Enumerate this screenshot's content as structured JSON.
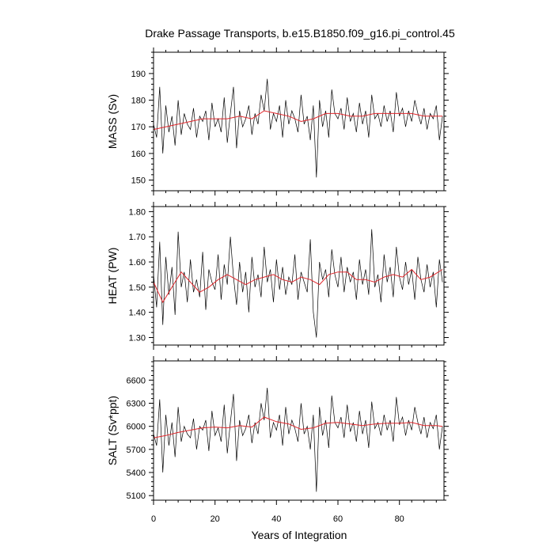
{
  "chart_data": {
    "type": "line",
    "title": "Drake Passage Transports, b.e15.B1850.f09_g16.pi_control.45",
    "xlabel": "Years of Integration",
    "xlim": [
      0,
      94.5
    ],
    "xticks": [
      0,
      20,
      40,
      60,
      80
    ],
    "xtick_labels": [
      "0",
      "20",
      "40",
      "60",
      "80"
    ],
    "colors": {
      "raw": "#000000",
      "smooth": "#e0262b"
    },
    "panels": [
      {
        "ylabel": "MASS (Sv)",
        "ylim": [
          146,
          198
        ],
        "yticks": [
          150,
          160,
          170,
          180,
          190
        ],
        "ytick_labels": [
          "150",
          "160",
          "170",
          "180",
          "190"
        ],
        "series": [
          {
            "style": "raw",
            "x": [
              0,
              1,
              2,
              3,
              4,
              5,
              6,
              7,
              8,
              9,
              10,
              11,
              12,
              13,
              14,
              15,
              16,
              17,
              18,
              19,
              20,
              21,
              22,
              23,
              24,
              25,
              26,
              27,
              28,
              29,
              30,
              31,
              32,
              33,
              34,
              35,
              36,
              37,
              38,
              39,
              40,
              41,
              42,
              43,
              44,
              45,
              46,
              47,
              48,
              49,
              50,
              51,
              52,
              53,
              54,
              55,
              56,
              57,
              58,
              59,
              60,
              61,
              62,
              63,
              64,
              65,
              66,
              67,
              68,
              69,
              70,
              71,
              72,
              73,
              74,
              75,
              76,
              77,
              78,
              79,
              80,
              81,
              82,
              83,
              84,
              85,
              86,
              87,
              88,
              89,
              90,
              91,
              92,
              93,
              94
            ],
            "y": [
              171,
              166,
              185,
              160,
              178,
              168,
              174,
              163,
              180,
              167,
              175,
              171,
              169,
              177,
              166,
              174,
              172,
              176,
              165,
              179,
              170,
              173,
              168,
              181,
              164,
              175,
              185,
              162,
              176,
              170,
              173,
              178,
              167,
              175,
              171,
              182,
              176,
              188,
              169,
              175,
              172,
              178,
              166,
              180,
              171,
              176,
              173,
              168,
              182,
              171,
              174,
              165,
              178,
              151,
              180,
              170,
              176,
              166,
              184,
              175,
              173,
              177,
              169,
              181,
              172,
              175,
              168,
              179,
              171,
              176,
              166,
              182,
              173,
              175,
              170,
              178,
              172,
              176,
              168,
              183,
              174,
              177,
              170,
              176,
              172,
              180,
              175,
              171,
              177,
              169,
              175,
              173,
              178,
              165,
              174
            ]
          },
          {
            "style": "smooth",
            "x": [
              0,
              4,
              8,
              12,
              16,
              20,
              24,
              28,
              32,
              36,
              40,
              44,
              48,
              52,
              56,
              60,
              64,
              68,
              72,
              76,
              80,
              84,
              88,
              92,
              94
            ],
            "y": [
              169,
              170,
              171,
              172,
              173,
              173,
              173,
              174,
              173,
              176,
              175,
              174,
              172,
              173,
              175,
              175,
              174,
              174,
              175,
              175,
              175,
              175,
              174,
              174,
              174
            ]
          }
        ]
      },
      {
        "ylabel": "HEAT (PW)",
        "ylim": [
          1.27,
          1.82
        ],
        "yticks": [
          1.3,
          1.4,
          1.5,
          1.6,
          1.7,
          1.8
        ],
        "ytick_labels": [
          "1.30",
          "1.40",
          "1.50",
          "1.60",
          "1.70",
          "1.80"
        ],
        "series": [
          {
            "style": "raw",
            "x": [
              0,
              1,
              2,
              3,
              4,
              5,
              6,
              7,
              8,
              9,
              10,
              11,
              12,
              13,
              14,
              15,
              16,
              17,
              18,
              19,
              20,
              21,
              22,
              23,
              24,
              25,
              26,
              27,
              28,
              29,
              30,
              31,
              32,
              33,
              34,
              35,
              36,
              37,
              38,
              39,
              40,
              41,
              42,
              43,
              44,
              45,
              46,
              47,
              48,
              49,
              50,
              51,
              52,
              53,
              54,
              55,
              56,
              57,
              58,
              59,
              60,
              61,
              62,
              63,
              64,
              65,
              66,
              67,
              68,
              69,
              70,
              71,
              72,
              73,
              74,
              75,
              76,
              77,
              78,
              79,
              80,
              81,
              82,
              83,
              84,
              85,
              86,
              87,
              88,
              89,
              90,
              91,
              92,
              93,
              94
            ],
            "y": [
              1.55,
              1.42,
              1.68,
              1.35,
              1.62,
              1.47,
              1.58,
              1.39,
              1.72,
              1.5,
              1.56,
              1.44,
              1.61,
              1.48,
              1.53,
              1.46,
              1.64,
              1.41,
              1.57,
              1.52,
              1.49,
              1.63,
              1.45,
              1.59,
              1.51,
              1.7,
              1.54,
              1.43,
              1.6,
              1.48,
              1.56,
              1.4,
              1.62,
              1.5,
              1.55,
              1.46,
              1.66,
              1.52,
              1.57,
              1.44,
              1.61,
              1.49,
              1.58,
              1.47,
              1.54,
              1.51,
              1.63,
              1.45,
              1.56,
              1.52,
              1.48,
              1.69,
              1.4,
              1.3,
              1.6,
              1.53,
              1.57,
              1.46,
              1.65,
              1.55,
              1.5,
              1.62,
              1.48,
              1.58,
              1.52,
              1.56,
              1.45,
              1.61,
              1.51,
              1.57,
              1.47,
              1.73,
              1.5,
              1.55,
              1.44,
              1.63,
              1.52,
              1.58,
              1.46,
              1.66,
              1.54,
              1.49,
              1.6,
              1.51,
              1.57,
              1.45,
              1.62,
              1.53,
              1.48,
              1.59,
              1.5,
              1.56,
              1.42,
              1.61,
              1.52
            ]
          },
          {
            "style": "smooth",
            "x": [
              0,
              3,
              6,
              9,
              12,
              15,
              18,
              21,
              24,
              27,
              30,
              33,
              36,
              39,
              42,
              45,
              48,
              51,
              54,
              57,
              60,
              63,
              66,
              69,
              72,
              75,
              78,
              81,
              84,
              87,
              90,
              94
            ],
            "y": [
              1.52,
              1.44,
              1.5,
              1.56,
              1.52,
              1.48,
              1.5,
              1.53,
              1.55,
              1.53,
              1.51,
              1.53,
              1.54,
              1.55,
              1.53,
              1.52,
              1.54,
              1.53,
              1.51,
              1.55,
              1.56,
              1.56,
              1.53,
              1.53,
              1.52,
              1.54,
              1.55,
              1.54,
              1.57,
              1.53,
              1.54,
              1.57
            ]
          }
        ]
      },
      {
        "ylabel": "SALT (Sv*ppt)",
        "ylim": [
          5040,
          6850
        ],
        "yticks": [
          5100,
          5400,
          5700,
          6000,
          6300,
          6600
        ],
        "ytick_labels": [
          "5100",
          "5400",
          "5700",
          "6000",
          "6300",
          "6600"
        ],
        "series": [
          {
            "style": "raw",
            "x": [
              0,
              1,
              2,
              3,
              4,
              5,
              6,
              7,
              8,
              9,
              10,
              11,
              12,
              13,
              14,
              15,
              16,
              17,
              18,
              19,
              20,
              21,
              22,
              23,
              24,
              25,
              26,
              27,
              28,
              29,
              30,
              31,
              32,
              33,
              34,
              35,
              36,
              37,
              38,
              39,
              40,
              41,
              42,
              43,
              44,
              45,
              46,
              47,
              48,
              49,
              50,
              51,
              52,
              53,
              54,
              55,
              56,
              57,
              58,
              59,
              60,
              61,
              62,
              63,
              64,
              65,
              66,
              67,
              68,
              69,
              70,
              71,
              72,
              73,
              74,
              75,
              76,
              77,
              78,
              79,
              80,
              81,
              82,
              83,
              84,
              85,
              86,
              87,
              88,
              89,
              90,
              91,
              92,
              93,
              94
            ],
            "y": [
              5900,
              5750,
              6350,
              5400,
              6150,
              5750,
              6050,
              5600,
              6250,
              5800,
              6000,
              5900,
              5850,
              6100,
              5700,
              6000,
              5950,
              6080,
              5680,
              6200,
              5880,
              5980,
              5800,
              6280,
              5650,
              6050,
              6420,
              5550,
              6080,
              5880,
              5970,
              6150,
              5780,
              6050,
              5900,
              6300,
              6080,
              6500,
              5850,
              6050,
              5950,
              6150,
              5750,
              6250,
              5900,
              6080,
              5970,
              5800,
              6300,
              5900,
              6000,
              5700,
              6150,
              5150,
              6250,
              5880,
              6080,
              5720,
              6400,
              6050,
              5980,
              6120,
              5850,
              6280,
              5930,
              6050,
              5800,
              6200,
              5900,
              6080,
              5720,
              6320,
              5970,
              6050,
              5880,
              6150,
              5950,
              6080,
              5800,
              6380,
              6020,
              6120,
              5880,
              6080,
              5950,
              6250,
              6050,
              5900,
              6120,
              5850,
              6050,
              5970,
              6150,
              5700,
              6000
            ]
          },
          {
            "style": "smooth",
            "x": [
              0,
              4,
              8,
              12,
              16,
              20,
              24,
              28,
              32,
              36,
              40,
              44,
              48,
              52,
              56,
              60,
              64,
              68,
              72,
              76,
              80,
              84,
              88,
              92,
              94
            ],
            "y": [
              5850,
              5880,
              5920,
              5950,
              5980,
              5990,
              5980,
              6010,
              5990,
              6120,
              6060,
              6030,
              5960,
              5980,
              6040,
              6050,
              6030,
              6010,
              6030,
              6040,
              6040,
              6050,
              6010,
              6010,
              6000
            ]
          }
        ]
      }
    ]
  }
}
